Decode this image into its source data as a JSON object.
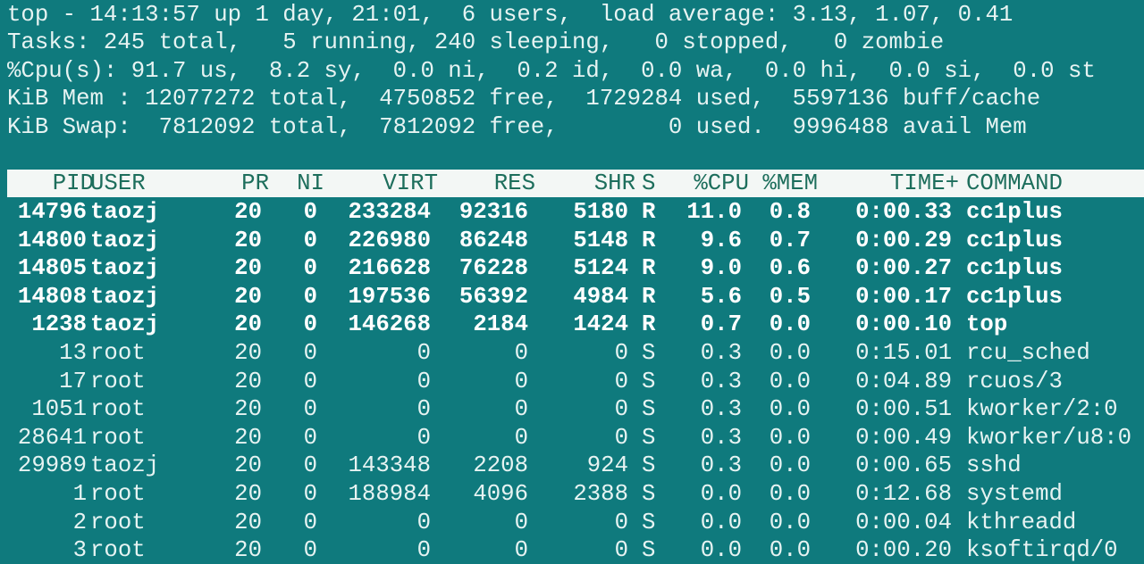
{
  "summary": {
    "line1": "top - 14:13:57 up 1 day, 21:01,  6 users,  load average: 3.13, 1.07, 0.41",
    "line2": "Tasks: 245 total,   5 running, 240 sleeping,   0 stopped,   0 zombie",
    "line3": "%Cpu(s): 91.7 us,  8.2 sy,  0.0 ni,  0.2 id,  0.0 wa,  0.0 hi,  0.0 si,  0.0 st",
    "line4": "KiB Mem : 12077272 total,  4750852 free,  1729284 used,  5597136 buff/cache",
    "line5": "KiB Swap:  7812092 total,  7812092 free,        0 used.  9996488 avail Mem"
  },
  "table": {
    "columns": [
      "PID",
      "USER",
      "PR",
      "NI",
      "VIRT",
      "RES",
      "SHR",
      "S",
      "%CPU",
      "%MEM",
      "TIME+",
      "COMMAND"
    ],
    "rows": [
      {
        "bold": true,
        "cells": [
          "14796",
          "taozj",
          "20",
          "0",
          "233284",
          "92316",
          "5180",
          "R",
          "11.0",
          "0.8",
          "0:00.33",
          "cc1plus"
        ]
      },
      {
        "bold": true,
        "cells": [
          "14800",
          "taozj",
          "20",
          "0",
          "226980",
          "86248",
          "5148",
          "R",
          "9.6",
          "0.7",
          "0:00.29",
          "cc1plus"
        ]
      },
      {
        "bold": true,
        "cells": [
          "14805",
          "taozj",
          "20",
          "0",
          "216628",
          "76228",
          "5124",
          "R",
          "9.0",
          "0.6",
          "0:00.27",
          "cc1plus"
        ]
      },
      {
        "bold": true,
        "cells": [
          "14808",
          "taozj",
          "20",
          "0",
          "197536",
          "56392",
          "4984",
          "R",
          "5.6",
          "0.5",
          "0:00.17",
          "cc1plus"
        ]
      },
      {
        "bold": true,
        "cells": [
          "1238",
          "taozj",
          "20",
          "0",
          "146268",
          "2184",
          "1424",
          "R",
          "0.7",
          "0.0",
          "0:00.10",
          "top"
        ]
      },
      {
        "bold": false,
        "cells": [
          "13",
          "root",
          "20",
          "0",
          "0",
          "0",
          "0",
          "S",
          "0.3",
          "0.0",
          "0:15.01",
          "rcu_sched"
        ]
      },
      {
        "bold": false,
        "cells": [
          "17",
          "root",
          "20",
          "0",
          "0",
          "0",
          "0",
          "S",
          "0.3",
          "0.0",
          "0:04.89",
          "rcuos/3"
        ]
      },
      {
        "bold": false,
        "cells": [
          "1051",
          "root",
          "20",
          "0",
          "0",
          "0",
          "0",
          "S",
          "0.3",
          "0.0",
          "0:00.51",
          "kworker/2:0"
        ]
      },
      {
        "bold": false,
        "cells": [
          "28641",
          "root",
          "20",
          "0",
          "0",
          "0",
          "0",
          "S",
          "0.3",
          "0.0",
          "0:00.49",
          "kworker/u8:0"
        ]
      },
      {
        "bold": false,
        "cells": [
          "29989",
          "taozj",
          "20",
          "0",
          "143348",
          "2208",
          "924",
          "S",
          "0.3",
          "0.0",
          "0:00.65",
          "sshd"
        ]
      },
      {
        "bold": false,
        "cells": [
          "1",
          "root",
          "20",
          "0",
          "188984",
          "4096",
          "2388",
          "S",
          "0.0",
          "0.0",
          "0:12.68",
          "systemd"
        ]
      },
      {
        "bold": false,
        "cells": [
          "2",
          "root",
          "20",
          "0",
          "0",
          "0",
          "0",
          "S",
          "0.0",
          "0.0",
          "0:00.04",
          "kthreadd"
        ]
      },
      {
        "bold": false,
        "cells": [
          "3",
          "root",
          "20",
          "0",
          "0",
          "0",
          "0",
          "S",
          "0.0",
          "0.0",
          "0:00.20",
          "ksoftirqd/0"
        ]
      }
    ]
  },
  "colors": {
    "background": "#0f7a7d",
    "text": "#e6f3f2",
    "header_bg": "#f3f7f5",
    "header_text": "#1d6e5c"
  }
}
